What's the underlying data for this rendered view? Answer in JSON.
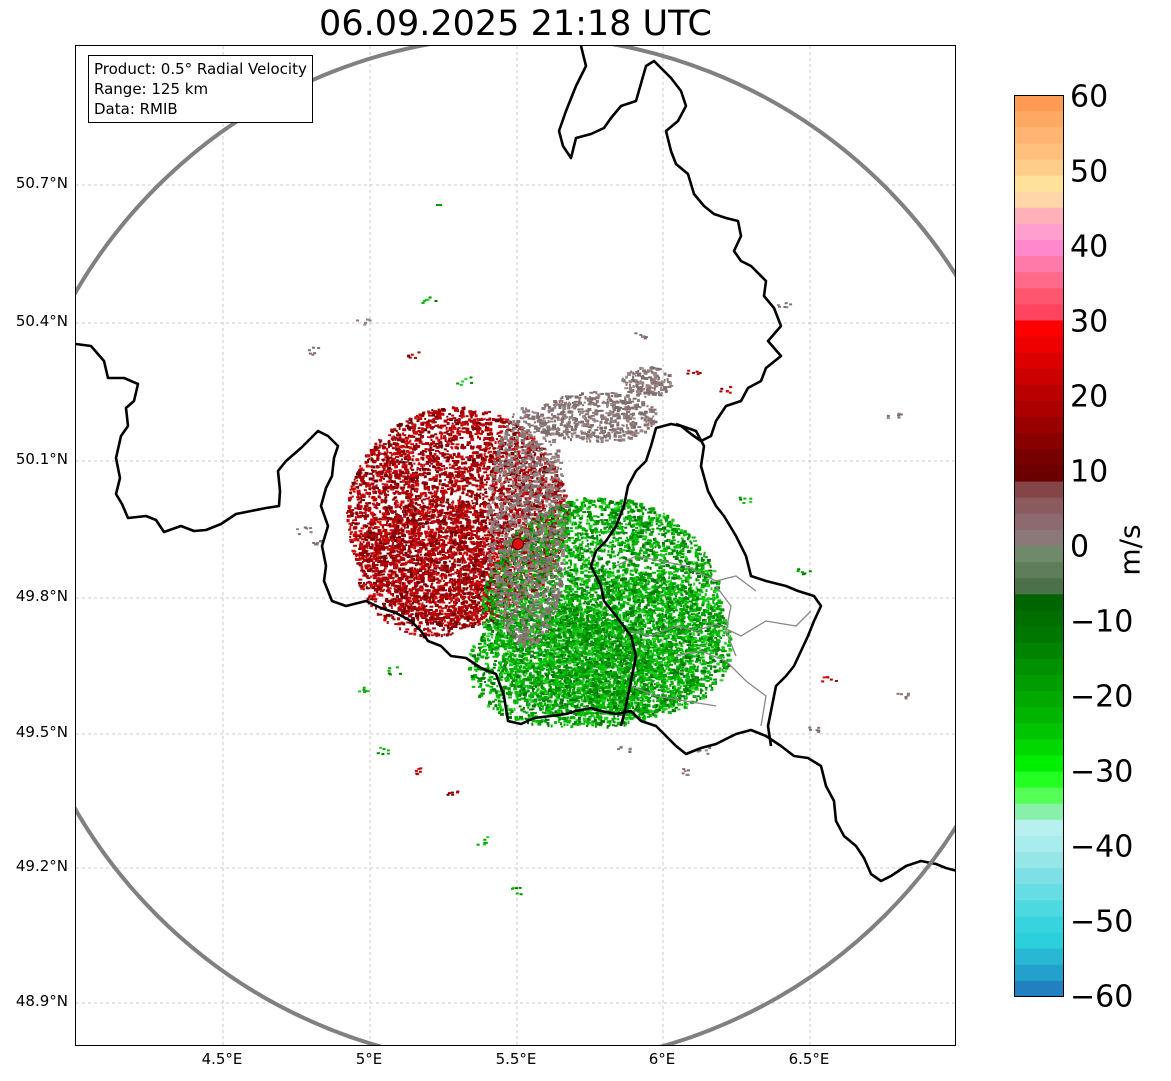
{
  "title": "06.09.2025 21:18 UTC",
  "info": {
    "product": "Product: 0.5° Radial Velocity",
    "range": "Range: 125 km",
    "data": "Data: RMIB"
  },
  "y_ticks": [
    "50.7°N",
    "50.4°N",
    "50.1°N",
    "49.8°N",
    "49.5°N",
    "49.2°N",
    "48.9°N"
  ],
  "x_ticks": [
    "4.5°E",
    "5°E",
    "5.5°E",
    "6°E",
    "6.5°E"
  ],
  "colorbar": {
    "label": "m/s",
    "ticks": [
      "60",
      "50",
      "40",
      "30",
      "20",
      "10",
      "0",
      "−10",
      "−20",
      "−30",
      "−40",
      "−50",
      "−60"
    ],
    "min": -60,
    "max": 60
  },
  "colors": {
    "approaching_strong": "#00c800",
    "approaching": "#008a00",
    "receding": "#b00000",
    "receding_dark": "#8a0000",
    "zero": "#8a7878",
    "radar_site": "#e01010",
    "range_ring": "#808080"
  }
}
